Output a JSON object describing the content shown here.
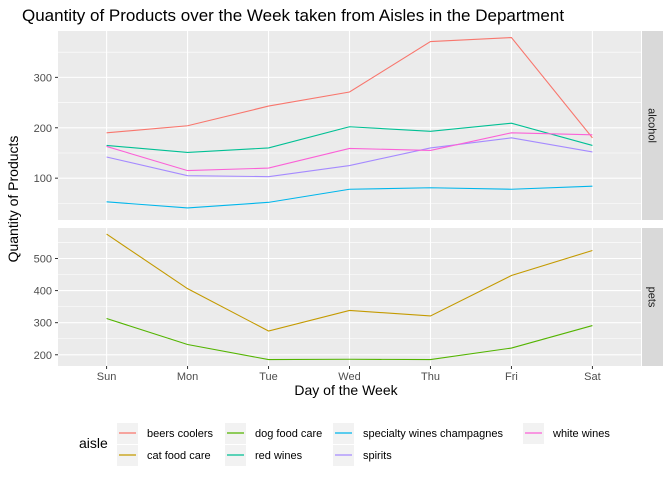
{
  "chart_data": {
    "type": "line",
    "title": "Quantity of Products over the Week taken from Aisles in the Department",
    "xlabel": "Day of the Week",
    "ylabel": "Quantity of Products",
    "categories": [
      "Sun",
      "Mon",
      "Tue",
      "Wed",
      "Thu",
      "Fri",
      "Sat"
    ],
    "grid": true,
    "legend": {
      "title": "aisle",
      "position": "bottom"
    },
    "legend_order": [
      "beers coolers",
      "cat food care",
      "dog food care",
      "red wines",
      "specialty wines champagnes",
      "spirits",
      "white wines"
    ],
    "colors": {
      "beers coolers": "#F8766D",
      "cat food care": "#C49A00",
      "dog food care": "#53B400",
      "red wines": "#00C094",
      "specialty wines champagnes": "#00B6EB",
      "spirits": "#A58AFF",
      "white wines": "#FB61D7"
    },
    "panels": [
      {
        "strip": "alcohol",
        "ylim": [
          17,
          392
        ],
        "yticks": [
          100,
          200,
          300
        ],
        "series": [
          {
            "name": "beers coolers",
            "values": [
              190,
              204,
              243,
              271,
              371,
              379,
              180
            ]
          },
          {
            "name": "red wines",
            "values": [
              165,
              151,
              160,
              202,
              193,
              209,
              165
            ]
          },
          {
            "name": "specialty wines champagnes",
            "values": [
              53,
              41,
              52,
              78,
              81,
              78,
              84
            ]
          },
          {
            "name": "spirits",
            "values": [
              142,
              105,
              103,
              125,
              160,
              180,
              152
            ]
          },
          {
            "name": "white wines",
            "values": [
              163,
              115,
              120,
              159,
              155,
              190,
              186
            ]
          }
        ]
      },
      {
        "strip": "pets",
        "ylim": [
          165,
          595
        ],
        "yticks": [
          200,
          300,
          400,
          500
        ],
        "series": [
          {
            "name": "cat food care",
            "values": [
              576,
              406,
              274,
              338,
              321,
              447,
              525
            ]
          },
          {
            "name": "dog food care",
            "values": [
              313,
              232,
              185,
              186,
              185,
              221,
              291
            ]
          }
        ]
      }
    ]
  }
}
